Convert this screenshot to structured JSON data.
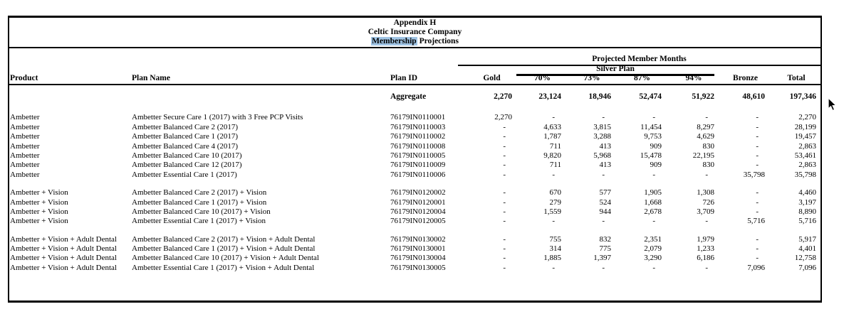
{
  "page": {
    "title_line1": "Appendix H",
    "title_line2": "Celtic Insurance Company",
    "subtitle_highlighted": "Membership",
    "subtitle_rest": " Projections",
    "highlight_color": "#a0c4e4"
  },
  "table": {
    "group_headers": {
      "projected": "Projected Member Months",
      "silver": "Silver Plan"
    },
    "columns": [
      "Product",
      "Plan Name",
      "Plan ID",
      "Gold",
      "70%",
      "73%",
      "87%",
      "94%",
      "Bronze",
      "Total"
    ],
    "aggregate": {
      "label": "Aggregate",
      "values": [
        "2,270",
        "23,124",
        "18,946",
        "52,474",
        "51,922",
        "48,610",
        "197,346"
      ]
    },
    "sections": [
      {
        "rows": [
          {
            "product": "Ambetter",
            "plan_name": "Ambetter Secure Care 1 (2017) with 3 Free PCP Visits",
            "plan_id": "76179IN0110001",
            "values": [
              "2,270",
              "-",
              "-",
              "-",
              "-",
              "-",
              "2,270"
            ]
          },
          {
            "product": "Ambetter",
            "plan_name": "Ambetter Balanced Care 2 (2017)",
            "plan_id": "76179IN0110003",
            "values": [
              "-",
              "4,633",
              "3,815",
              "11,454",
              "8,297",
              "-",
              "28,199"
            ]
          },
          {
            "product": "Ambetter",
            "plan_name": "Ambetter Balanced Care 1 (2017)",
            "plan_id": "76179IN0110002",
            "values": [
              "-",
              "1,787",
              "3,288",
              "9,753",
              "4,629",
              "-",
              "19,457"
            ]
          },
          {
            "product": "Ambetter",
            "plan_name": "Ambetter Balanced Care 4 (2017)",
            "plan_id": "76179IN0110008",
            "values": [
              "-",
              "711",
              "413",
              "909",
              "830",
              "-",
              "2,863"
            ]
          },
          {
            "product": "Ambetter",
            "plan_name": "Ambetter Balanced Care 10 (2017)",
            "plan_id": "76179IN0110005",
            "values": [
              "-",
              "9,820",
              "5,968",
              "15,478",
              "22,195",
              "-",
              "53,461"
            ]
          },
          {
            "product": "Ambetter",
            "plan_name": "Ambetter Balanced Care 12 (2017)",
            "plan_id": "76179IN0110009",
            "values": [
              "-",
              "711",
              "413",
              "909",
              "830",
              "-",
              "2,863"
            ]
          },
          {
            "product": "Ambetter",
            "plan_name": "Ambetter Essential Care 1 (2017)",
            "plan_id": "76179IN0110006",
            "values": [
              "-",
              "-",
              "-",
              "-",
              "-",
              "35,798",
              "35,798"
            ]
          }
        ]
      },
      {
        "rows": [
          {
            "product": "Ambetter + Vision",
            "plan_name": "Ambetter Balanced Care 2 (2017) + Vision",
            "plan_id": "76179IN0120002",
            "values": [
              "-",
              "670",
              "577",
              "1,905",
              "1,308",
              "-",
              "4,460"
            ]
          },
          {
            "product": "Ambetter + Vision",
            "plan_name": "Ambetter Balanced Care 1 (2017) + Vision",
            "plan_id": "76179IN0120001",
            "values": [
              "-",
              "279",
              "524",
              "1,668",
              "726",
              "-",
              "3,197"
            ]
          },
          {
            "product": "Ambetter + Vision",
            "plan_name": "Ambetter Balanced Care 10 (2017) + Vision",
            "plan_id": "76179IN0120004",
            "values": [
              "-",
              "1,559",
              "944",
              "2,678",
              "3,709",
              "-",
              "8,890"
            ]
          },
          {
            "product": "Ambetter + Vision",
            "plan_name": "Ambetter Essential Care 1 (2017) + Vision",
            "plan_id": "76179IN0120005",
            "values": [
              "-",
              "-",
              "-",
              "-",
              "-",
              "5,716",
              "5,716"
            ]
          }
        ]
      },
      {
        "rows": [
          {
            "product": "Ambetter + Vision + Adult Dental",
            "plan_name": "Ambetter Balanced Care 2 (2017) + Vision + Adult Dental",
            "plan_id": "76179IN0130002",
            "values": [
              "-",
              "755",
              "832",
              "2,351",
              "1,979",
              "-",
              "5,917"
            ]
          },
          {
            "product": "Ambetter + Vision + Adult Dental",
            "plan_name": "Ambetter Balanced Care 1 (2017) + Vision + Adult Dental",
            "plan_id": "76179IN0130001",
            "values": [
              "-",
              "314",
              "775",
              "2,079",
              "1,233",
              "-",
              "4,401"
            ]
          },
          {
            "product": "Ambetter + Vision + Adult Dental",
            "plan_name": "Ambetter Balanced Care 10 (2017) + Vision + Adult Dental",
            "plan_id": "76179IN0130004",
            "values": [
              "-",
              "1,885",
              "1,397",
              "3,290",
              "6,186",
              "-",
              "12,758"
            ]
          },
          {
            "product": "Ambetter + Vision + Adult Dental",
            "plan_name": "Ambetter Essential Care 1 (2017) + Vision + Adult Dental",
            "plan_id": "76179IN0130005",
            "values": [
              "-",
              "-",
              "-",
              "-",
              "-",
              "7,096",
              "7,096"
            ]
          }
        ]
      }
    ]
  }
}
